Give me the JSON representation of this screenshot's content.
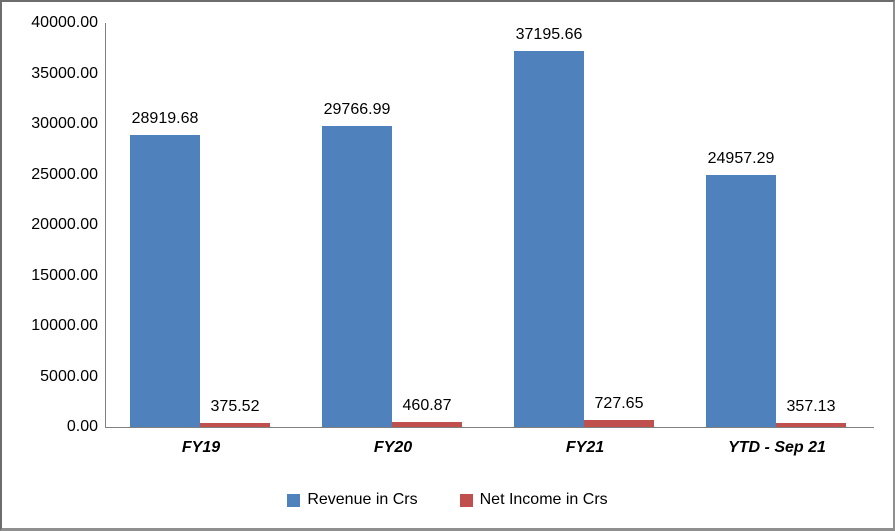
{
  "chart_data": {
    "type": "bar",
    "title": "",
    "categories": [
      "FY19",
      "FY20",
      "FY21",
      "YTD - Sep 21"
    ],
    "series": [
      {
        "name": "Revenue in Crs",
        "color": "#4F81BD",
        "values": [
          28919.68,
          29766.99,
          37195.66,
          24957.29
        ]
      },
      {
        "name": "Net Income in Crs",
        "color": "#C0504D",
        "values": [
          375.52,
          460.87,
          727.65,
          357.13
        ]
      }
    ],
    "ylim": [
      0,
      40000
    ],
    "ytick_step": 5000,
    "ytick_decimals": 2,
    "grid": false,
    "legend_position": "bottom",
    "axis_color": "#808080",
    "text_color": "#000000"
  }
}
